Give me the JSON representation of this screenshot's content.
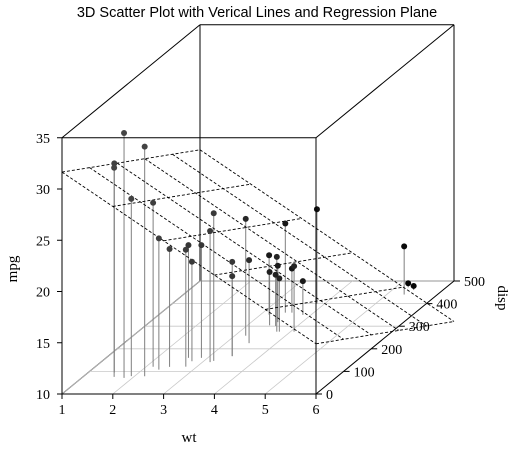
{
  "chart_data": {
    "type": "scatter",
    "title": "3D Scatter Plot with Verical Lines and Regression Plane",
    "xlabel": "wt",
    "ylabel": "disp",
    "zlabel": "mpg",
    "x_ticks": [
      1,
      2,
      3,
      4,
      5,
      6
    ],
    "y_ticks": [
      0,
      100,
      200,
      300,
      400,
      500
    ],
    "z_ticks": [
      10,
      15,
      20,
      25,
      30,
      35
    ],
    "xlim": [
      1,
      6
    ],
    "ylim": [
      0,
      500
    ],
    "zlim": [
      10,
      35
    ],
    "grid": true,
    "point_color": "#000000",
    "drop_line_color": "#7f7f7f",
    "plane_color": "#000000",
    "regression_plane": {
      "intercept": 35.0,
      "coef_wt": -3.35,
      "coef_disp": -0.0177
    },
    "points": [
      {
        "wt": 2.62,
        "disp": 160,
        "mpg": 21.0
      },
      {
        "wt": 2.875,
        "disp": 160,
        "mpg": 21.0
      },
      {
        "wt": 2.32,
        "disp": 108,
        "mpg": 22.8
      },
      {
        "wt": 3.215,
        "disp": 258,
        "mpg": 21.4
      },
      {
        "wt": 3.44,
        "disp": 360,
        "mpg": 18.7
      },
      {
        "wt": 3.46,
        "disp": 225,
        "mpg": 18.1
      },
      {
        "wt": 3.57,
        "disp": 360,
        "mpg": 14.3
      },
      {
        "wt": 3.19,
        "disp": 146.7,
        "mpg": 24.4
      },
      {
        "wt": 3.15,
        "disp": 140.8,
        "mpg": 22.8
      },
      {
        "wt": 3.44,
        "disp": 167.6,
        "mpg": 19.2
      },
      {
        "wt": 3.44,
        "disp": 167.6,
        "mpg": 17.8
      },
      {
        "wt": 4.07,
        "disp": 275.8,
        "mpg": 16.4
      },
      {
        "wt": 3.73,
        "disp": 275.8,
        "mpg": 17.3
      },
      {
        "wt": 3.78,
        "disp": 275.8,
        "mpg": 15.2
      },
      {
        "wt": 5.25,
        "disp": 472,
        "mpg": 10.4
      },
      {
        "wt": 5.424,
        "disp": 460,
        "mpg": 10.4
      },
      {
        "wt": 5.345,
        "disp": 440,
        "mpg": 14.7
      },
      {
        "wt": 2.2,
        "disp": 78.7,
        "mpg": 32.4
      },
      {
        "wt": 1.615,
        "disp": 75.7,
        "mpg": 30.4
      },
      {
        "wt": 1.835,
        "disp": 71.1,
        "mpg": 33.9
      },
      {
        "wt": 2.465,
        "disp": 120.1,
        "mpg": 21.5
      },
      {
        "wt": 3.52,
        "disp": 318,
        "mpg": 15.5
      },
      {
        "wt": 3.435,
        "disp": 304,
        "mpg": 15.2
      },
      {
        "wt": 3.84,
        "disp": 350,
        "mpg": 13.3
      },
      {
        "wt": 3.845,
        "disp": 400,
        "mpg": 19.2
      },
      {
        "wt": 1.935,
        "disp": 79,
        "mpg": 27.3
      },
      {
        "wt": 2.14,
        "disp": 120.3,
        "mpg": 26.0
      },
      {
        "wt": 1.513,
        "disp": 95.1,
        "mpg": 30.4
      },
      {
        "wt": 3.17,
        "disp": 351,
        "mpg": 15.8
      },
      {
        "wt": 2.77,
        "disp": 145,
        "mpg": 19.7
      },
      {
        "wt": 3.57,
        "disp": 301,
        "mpg": 15.0
      },
      {
        "wt": 2.78,
        "disp": 121,
        "mpg": 21.4
      }
    ]
  }
}
